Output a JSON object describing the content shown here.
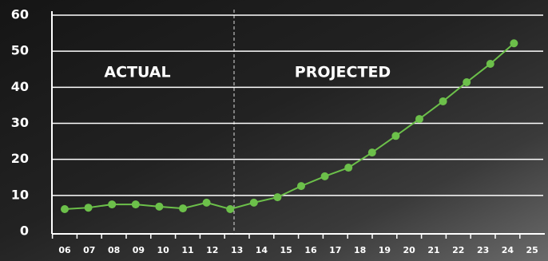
{
  "chart_data": {
    "type": "line",
    "annotations": [
      "ACTUAL",
      "PROJECTED"
    ],
    "categories": [
      "06",
      "07",
      "08",
      "09",
      "10",
      "11",
      "12",
      "13",
      "14",
      "15",
      "16",
      "17",
      "18",
      "19",
      "20",
      "21",
      "22",
      "23",
      "24",
      "25"
    ],
    "values": [
      6.2,
      6.6,
      7.5,
      7.5,
      6.9,
      6.4,
      8.0,
      6.2,
      8.0,
      9.5,
      12.6,
      15.3,
      17.7,
      21.9,
      26.5,
      31.2,
      36.1,
      41.4,
      46.5,
      52.2
    ],
    "color": "#6cc04a",
    "ylim": [
      0,
      60
    ],
    "yticks": [
      0,
      10,
      20,
      30,
      40,
      50,
      60
    ],
    "grid": true
  }
}
